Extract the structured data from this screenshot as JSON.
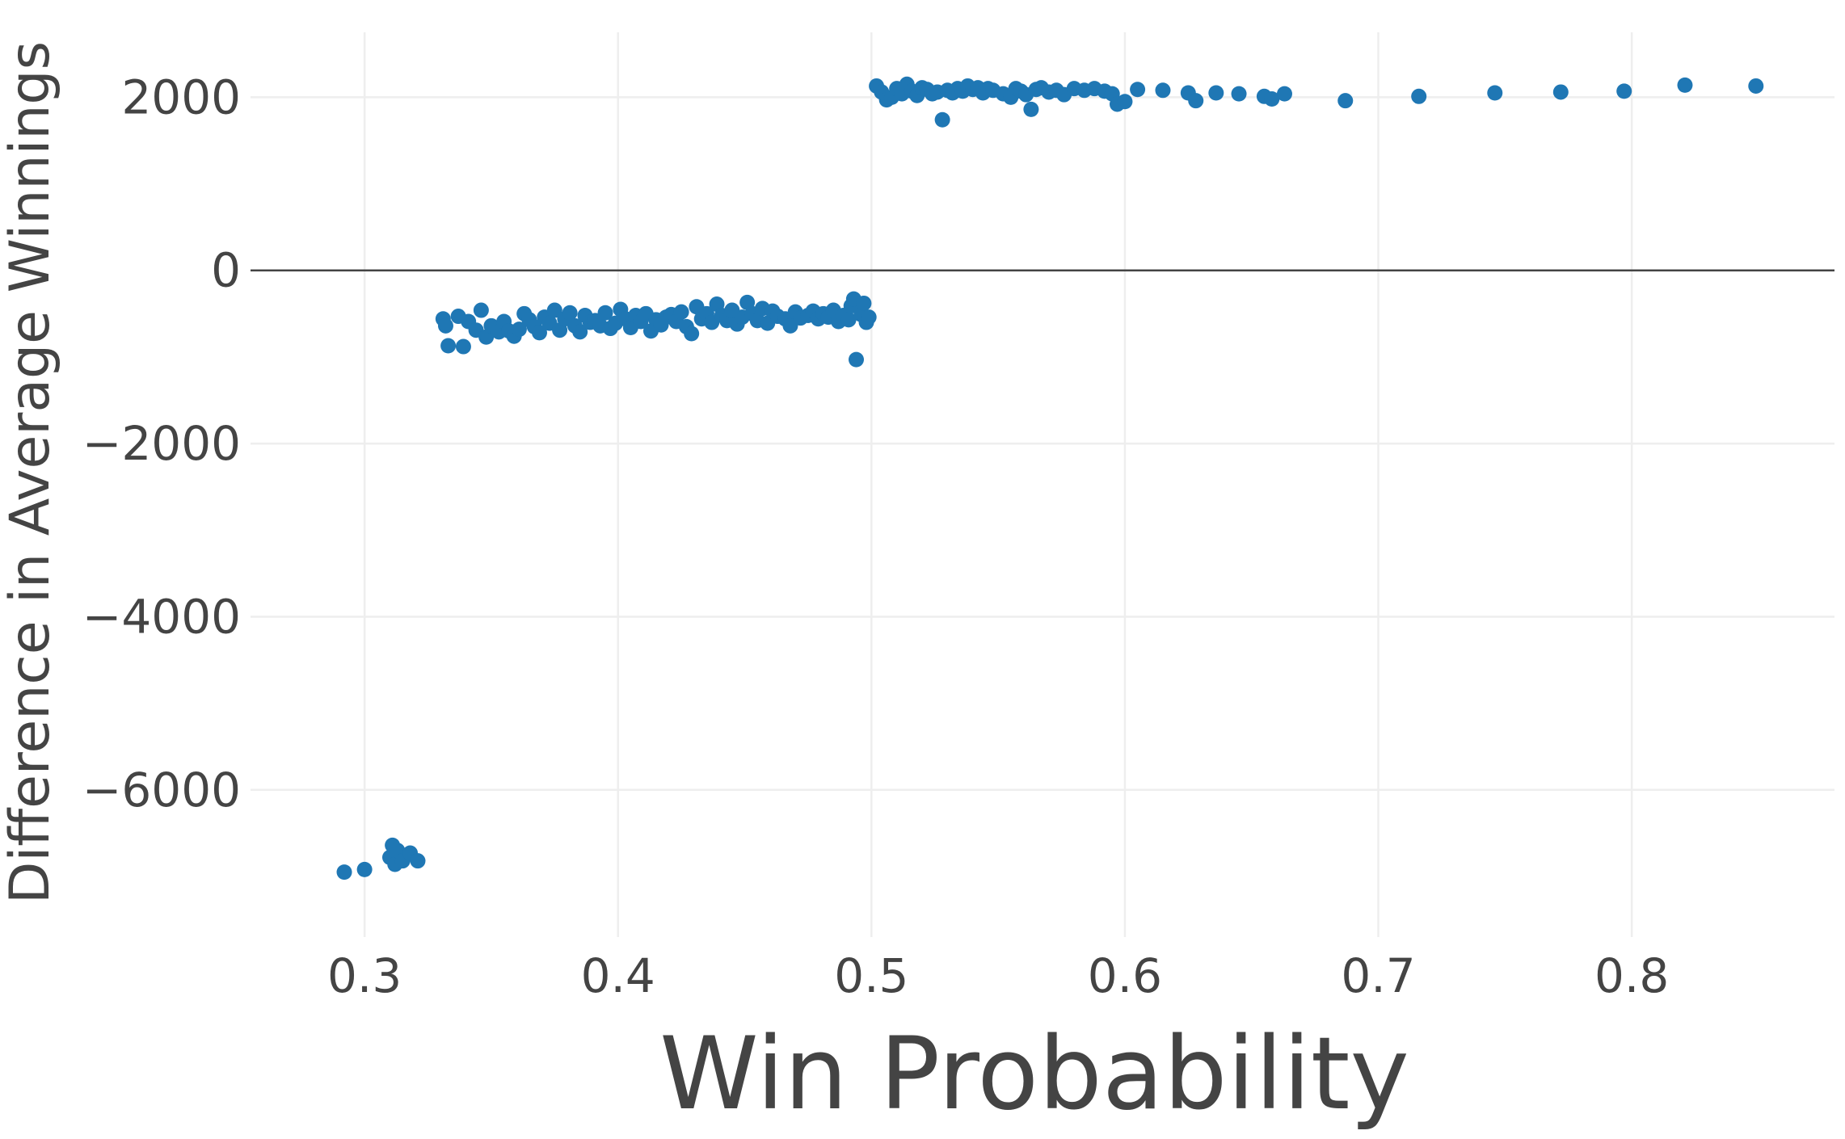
{
  "chart_data": {
    "type": "scatter",
    "title": "",
    "xlabel": "Win Probability",
    "ylabel": "Difference in Average Winnings",
    "xlim": [
      0.255,
      0.88
    ],
    "ylim": [
      -7700,
      2750
    ],
    "x_ticks": [
      "0.3",
      "0.4",
      "0.5",
      "0.6",
      "0.7",
      "0.8"
    ],
    "x_tick_values": [
      0.3,
      0.4,
      0.5,
      0.6,
      0.7,
      0.8
    ],
    "y_ticks": [
      "2000",
      "0",
      "−2000",
      "−4000",
      "−6000"
    ],
    "y_tick_values": [
      2000,
      0,
      -2000,
      -4000,
      -6000
    ],
    "grid": true,
    "zero_line": true,
    "legend": "none",
    "marker_color": "#1f77b4",
    "series": [
      {
        "points": [
          [
            0.292,
            -6950
          ],
          [
            0.3,
            -6920
          ],
          [
            0.31,
            -6780
          ],
          [
            0.311,
            -6640
          ],
          [
            0.312,
            -6860
          ],
          [
            0.313,
            -6700
          ],
          [
            0.315,
            -6820
          ],
          [
            0.318,
            -6730
          ],
          [
            0.321,
            -6820
          ],
          [
            0.331,
            -560
          ],
          [
            0.332,
            -640
          ],
          [
            0.333,
            -870
          ],
          [
            0.337,
            -530
          ],
          [
            0.339,
            -880
          ],
          [
            0.341,
            -590
          ],
          [
            0.344,
            -690
          ],
          [
            0.346,
            -460
          ],
          [
            0.348,
            -770
          ],
          [
            0.35,
            -640
          ],
          [
            0.353,
            -710
          ],
          [
            0.355,
            -590
          ],
          [
            0.357,
            -700
          ],
          [
            0.359,
            -760
          ],
          [
            0.361,
            -680
          ],
          [
            0.363,
            -500
          ],
          [
            0.365,
            -570
          ],
          [
            0.367,
            -650
          ],
          [
            0.369,
            -720
          ],
          [
            0.371,
            -540
          ],
          [
            0.373,
            -610
          ],
          [
            0.375,
            -460
          ],
          [
            0.377,
            -690
          ],
          [
            0.379,
            -560
          ],
          [
            0.381,
            -490
          ],
          [
            0.383,
            -640
          ],
          [
            0.385,
            -710
          ],
          [
            0.387,
            -520
          ],
          [
            0.389,
            -600
          ],
          [
            0.391,
            -580
          ],
          [
            0.393,
            -640
          ],
          [
            0.395,
            -490
          ],
          [
            0.397,
            -670
          ],
          [
            0.399,
            -610
          ],
          [
            0.401,
            -450
          ],
          [
            0.403,
            -560
          ],
          [
            0.405,
            -660
          ],
          [
            0.407,
            -520
          ],
          [
            0.409,
            -590
          ],
          [
            0.411,
            -500
          ],
          [
            0.413,
            -700
          ],
          [
            0.415,
            -570
          ],
          [
            0.417,
            -630
          ],
          [
            0.419,
            -540
          ],
          [
            0.421,
            -510
          ],
          [
            0.423,
            -590
          ],
          [
            0.425,
            -480
          ],
          [
            0.427,
            -650
          ],
          [
            0.429,
            -730
          ],
          [
            0.431,
            -420
          ],
          [
            0.433,
            -560
          ],
          [
            0.435,
            -500
          ],
          [
            0.437,
            -600
          ],
          [
            0.439,
            -390
          ],
          [
            0.441,
            -520
          ],
          [
            0.443,
            -580
          ],
          [
            0.445,
            -460
          ],
          [
            0.447,
            -620
          ],
          [
            0.449,
            -540
          ],
          [
            0.451,
            -370
          ],
          [
            0.453,
            -500
          ],
          [
            0.455,
            -580
          ],
          [
            0.457,
            -440
          ],
          [
            0.459,
            -610
          ],
          [
            0.461,
            -470
          ],
          [
            0.463,
            -530
          ],
          [
            0.466,
            -560
          ],
          [
            0.468,
            -640
          ],
          [
            0.47,
            -480
          ],
          [
            0.472,
            -550
          ],
          [
            0.475,
            -520
          ],
          [
            0.477,
            -470
          ],
          [
            0.479,
            -560
          ],
          [
            0.481,
            -500
          ],
          [
            0.483,
            -540
          ],
          [
            0.485,
            -460
          ],
          [
            0.487,
            -590
          ],
          [
            0.489,
            -520
          ],
          [
            0.491,
            -570
          ],
          [
            0.492,
            -410
          ],
          [
            0.493,
            -330
          ],
          [
            0.494,
            -1030
          ],
          [
            0.496,
            -510
          ],
          [
            0.497,
            -380
          ],
          [
            0.498,
            -600
          ],
          [
            0.499,
            -540
          ],
          [
            0.502,
            2130
          ],
          [
            0.504,
            2060
          ],
          [
            0.506,
            1970
          ],
          [
            0.508,
            2000
          ],
          [
            0.51,
            2100
          ],
          [
            0.512,
            2040
          ],
          [
            0.514,
            2150
          ],
          [
            0.516,
            2070
          ],
          [
            0.518,
            2020
          ],
          [
            0.52,
            2110
          ],
          [
            0.522,
            2090
          ],
          [
            0.524,
            2040
          ],
          [
            0.526,
            2060
          ],
          [
            0.528,
            1740
          ],
          [
            0.53,
            2080
          ],
          [
            0.532,
            2050
          ],
          [
            0.534,
            2100
          ],
          [
            0.536,
            2070
          ],
          [
            0.538,
            2130
          ],
          [
            0.54,
            2090
          ],
          [
            0.542,
            2110
          ],
          [
            0.544,
            2050
          ],
          [
            0.546,
            2100
          ],
          [
            0.548,
            2080
          ],
          [
            0.552,
            2040
          ],
          [
            0.555,
            2000
          ],
          [
            0.557,
            2100
          ],
          [
            0.559,
            2070
          ],
          [
            0.561,
            2030
          ],
          [
            0.563,
            1860
          ],
          [
            0.565,
            2090
          ],
          [
            0.567,
            2110
          ],
          [
            0.57,
            2060
          ],
          [
            0.573,
            2080
          ],
          [
            0.576,
            2030
          ],
          [
            0.58,
            2100
          ],
          [
            0.584,
            2080
          ],
          [
            0.588,
            2100
          ],
          [
            0.592,
            2070
          ],
          [
            0.595,
            2040
          ],
          [
            0.597,
            1920
          ],
          [
            0.6,
            1950
          ],
          [
            0.605,
            2090
          ],
          [
            0.615,
            2080
          ],
          [
            0.625,
            2050
          ],
          [
            0.628,
            1960
          ],
          [
            0.636,
            2050
          ],
          [
            0.645,
            2040
          ],
          [
            0.655,
            2010
          ],
          [
            0.658,
            1980
          ],
          [
            0.663,
            2040
          ],
          [
            0.687,
            1960
          ],
          [
            0.716,
            2010
          ],
          [
            0.746,
            2050
          ],
          [
            0.772,
            2060
          ],
          [
            0.797,
            2070
          ],
          [
            0.821,
            2140
          ],
          [
            0.849,
            2130
          ]
        ]
      }
    ]
  }
}
